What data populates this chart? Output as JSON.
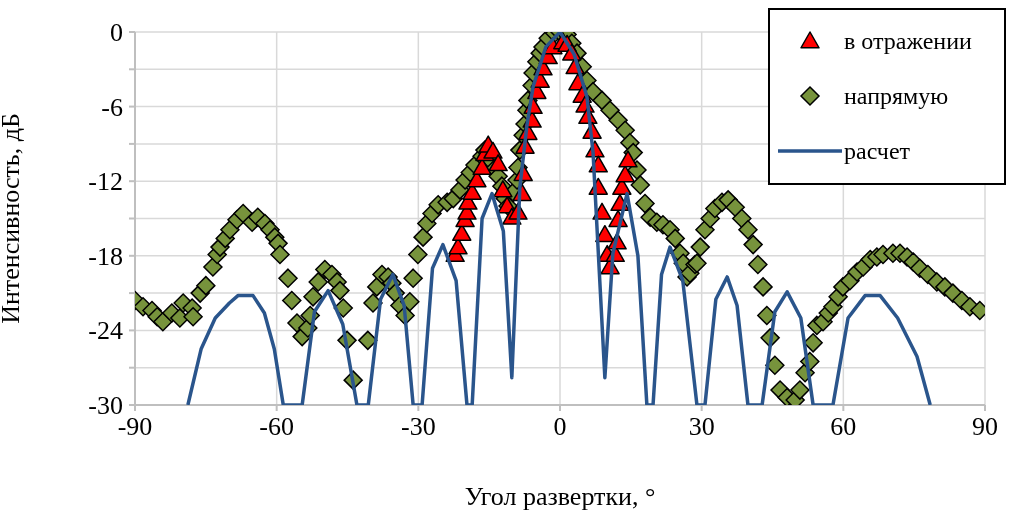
{
  "chart_data": {
    "type": "scatter",
    "xlabel": "Угол развертки, °",
    "ylabel": "Интенсивность, дБ",
    "xlim": [
      -90,
      90
    ],
    "xticks": [
      -90,
      -60,
      -30,
      0,
      30,
      60,
      90
    ],
    "ylim": [
      -30,
      0
    ],
    "yticks": [
      {
        "value": -30,
        "label": "-30"
      },
      {
        "value": -27,
        "label": null
      },
      {
        "value": -24,
        "label": "-24"
      },
      {
        "value": -21,
        "label": null
      },
      {
        "value": -18,
        "label": "-18"
      },
      {
        "value": -15,
        "label": null
      },
      {
        "value": -12,
        "label": "-12"
      },
      {
        "value": -9,
        "label": null
      },
      {
        "value": -6,
        "label": "-6"
      },
      {
        "value": -3,
        "label": null
      },
      {
        "value": 0,
        "label": "0"
      }
    ],
    "grid": true,
    "legend": "top right",
    "series": [
      {
        "name": "в отражении",
        "type": "scatter",
        "marker": "triangle",
        "color": "#ff0000",
        "x": [
          -22.2,
          -21.6,
          -20.8,
          -20.1,
          -19.7,
          -19.5,
          -18.6,
          -17.6,
          -16.5,
          -15.9,
          -15.2,
          -14.2,
          -13.1,
          -12.1,
          -11.2,
          -10.2,
          -8.9,
          -8.0,
          -7.8,
          -7.4,
          -6.8,
          -5.9,
          -5.7,
          -4.9,
          -4.2,
          -3.6,
          -2.5,
          -1.5,
          0.6,
          1.5,
          2.5,
          3.2,
          3.8,
          4.7,
          5.3,
          5.9,
          6.8,
          7.4,
          8.1,
          8.1,
          8.9,
          9.5,
          10.0,
          10.6,
          11.7,
          12.1,
          12.3,
          12.7,
          13.1,
          13.8,
          14.4
        ],
        "values": [
          -17.9,
          -17.3,
          -16.2,
          -15.1,
          -14.5,
          -13.7,
          -12.9,
          -11.9,
          -10.9,
          -9.8,
          -9.1,
          -9.6,
          -10.6,
          -12.7,
          -14.0,
          -14.9,
          -14.5,
          -13.0,
          -11.4,
          -9.2,
          -8.1,
          -7.1,
          -6.0,
          -4.8,
          -3.9,
          -2.9,
          -2.0,
          -1.2,
          -0.8,
          -1.0,
          -1.7,
          -2.8,
          -4.1,
          -5.1,
          -5.9,
          -6.8,
          -8.0,
          -9.5,
          -10.7,
          -12.5,
          -14.5,
          -16.3,
          -17.9,
          -18.9,
          -17.9,
          -16.9,
          -15.1,
          -13.8,
          -12.5,
          -11.5,
          -10.3
        ]
      },
      {
        "name": "напрямую",
        "type": "scatter",
        "marker": "diamond",
        "color": "#77933c",
        "x": [
          -90,
          -88.3,
          -86.4,
          -85.3,
          -84.1,
          -82.2,
          -80.5,
          -79.8,
          -77.9,
          -77.7,
          -76.2,
          -75,
          -73.5,
          -72.6,
          -72,
          -70.9,
          -69.9,
          -68.4,
          -67.1,
          -65.2,
          -64,
          -62.5,
          -61.4,
          -60.4,
          -59.7,
          -59.3,
          -57.6,
          -56.8,
          -55.7,
          -54.6,
          -53.4,
          -52.9,
          -52.3,
          -51.2,
          -49.8,
          -48.3,
          -47.2,
          -46.6,
          -45.9,
          -45.1,
          -43.8,
          -40.7,
          -39.6,
          -38.8,
          -37.7,
          -36.4,
          -35.6,
          -34.9,
          -33.9,
          -32.8,
          -31.8,
          -31.1,
          -30.1,
          -29,
          -28.2,
          -27.1,
          -25.8,
          -23.9,
          -22.6,
          -21.2,
          -20.1,
          -19,
          -18,
          -16.5,
          -15.9,
          -14.8,
          -13.8,
          -13.1,
          -12.3,
          -11.6,
          -11,
          -9.9,
          -9.1,
          -8.9,
          -8.5,
          -7.8,
          -7.4,
          -7,
          -6.8,
          -5.9,
          -5.7,
          -4.9,
          -4.2,
          -3.6,
          -2.5,
          -1.1,
          0,
          1.5,
          2.5,
          3.6,
          4.7,
          5.7,
          7,
          8.9,
          10.6,
          12.3,
          13.8,
          14.8,
          15.5,
          16.3,
          17,
          18,
          19.1,
          20.5,
          21.8,
          23.3,
          24.4,
          25.4,
          26.1,
          26.9,
          27.5,
          28.6,
          29,
          29.7,
          30.7,
          31.8,
          32.8,
          34.3,
          35.6,
          37.1,
          38.5,
          39.8,
          40.9,
          41.9,
          43,
          43.8,
          44.5,
          45.5,
          46.6,
          48.1,
          49.8,
          50.8,
          51.9,
          52.9,
          53.6,
          54.4,
          55.7,
          56.8,
          57.8,
          58.9,
          59.9,
          61.4,
          62.9,
          64.2,
          65.7,
          67.1,
          68.4,
          70.5,
          72,
          73.5,
          74.8,
          76.2,
          77.9,
          79.8,
          81.5,
          83.2,
          85.1,
          86.8,
          88.9
        ],
        "values": [
          -21.6,
          -22.1,
          -22.4,
          -22.9,
          -23.3,
          -22.6,
          -23,
          -21.8,
          -22.2,
          -22.9,
          -21,
          -20.4,
          -18.9,
          -17.9,
          -17.3,
          -16.6,
          -15.9,
          -15.1,
          -14.6,
          -15.3,
          -14.9,
          -15.4,
          -15.9,
          -16.5,
          -17,
          -17.9,
          -19.8,
          -21.6,
          -23.4,
          -24.5,
          -23.8,
          -22.8,
          -21.3,
          -20.1,
          -19.1,
          -19.5,
          -20.1,
          -20.8,
          -22.2,
          -24.8,
          -28,
          -24.8,
          -21.8,
          -20.5,
          -19.5,
          -19.7,
          -20.2,
          -21,
          -22,
          -22.8,
          -21.7,
          -19.8,
          -17.9,
          -16.5,
          -15.4,
          -14.6,
          -13.9,
          -13.7,
          -13.4,
          -12.7,
          -11.9,
          -11.3,
          -10.7,
          -10,
          -9.5,
          -10.3,
          -11,
          -11.6,
          -12.4,
          -13.4,
          -14,
          -12.9,
          -11.9,
          -10.9,
          -9.5,
          -8.3,
          -7.4,
          -6.3,
          -5.5,
          -4.3,
          -3.3,
          -2.4,
          -1.7,
          -1.2,
          -0.5,
          -0.1,
          0,
          -0.2,
          -0.9,
          -1.7,
          -2.8,
          -3.9,
          -4.8,
          -5.5,
          -6.3,
          -7.1,
          -7.9,
          -8.9,
          -9.7,
          -11.1,
          -12.3,
          -13.8,
          -14.9,
          -15.3,
          -15.5,
          -15.9,
          -16.6,
          -17.8,
          -18.6,
          -19.7,
          -19.4,
          -18.7,
          -18.6,
          -17.3,
          -15.9,
          -15,
          -14.2,
          -13.7,
          -13.5,
          -14.1,
          -15,
          -15.9,
          -17.1,
          -18.7,
          -20.5,
          -22.8,
          -24.6,
          -26.8,
          -28.8,
          -29.4,
          -29.6,
          -28.8,
          -27.4,
          -26.5,
          -25,
          -23.6,
          -23.3,
          -22.6,
          -22.1,
          -21.3,
          -20.5,
          -20,
          -19.3,
          -18.9,
          -18.3,
          -18.1,
          -17.9,
          -17.8,
          -17.8,
          -18.1,
          -18.5,
          -19,
          -19.5,
          -20.1,
          -20.5,
          -21,
          -21.6,
          -22.1,
          -22.4
        ]
      },
      {
        "name": "расчет",
        "type": "line",
        "marker": "none",
        "line_style": "solid",
        "color": "#2a558c",
        "x": [
          -78.8,
          -76,
          -73,
          -70,
          -68.2,
          -65,
          -62.6,
          -60.5,
          -58.6,
          -54.6,
          -52,
          -49.1,
          -46,
          -43,
          -40.6,
          -38,
          -35.4,
          -33,
          -31.1,
          -29.2,
          -27,
          -24.8,
          -22,
          -19.7,
          -18.6,
          -16.5,
          -14.4,
          -12,
          -10.2,
          -8.5,
          -7,
          -5.7,
          -3,
          0,
          3,
          5.7,
          7,
          9.5,
          11.2,
          14.2,
          16.5,
          18.4,
          19.7,
          21.5,
          23.3,
          26,
          29,
          30.7,
          33,
          35.4,
          37.5,
          39.8,
          42.8,
          45.5,
          48.1,
          51,
          53.6,
          57.8,
          61,
          64.6,
          67.8,
          71.5,
          75.6,
          78.4
        ],
        "values": [
          -30,
          -25.5,
          -23,
          -21.8,
          -21.2,
          -21.2,
          -22.6,
          -25.5,
          -30,
          -30,
          -22.5,
          -20.8,
          -23.5,
          -30,
          -30,
          -21.5,
          -19.5,
          -22,
          -30,
          -30,
          -19,
          -17.1,
          -20,
          -30,
          -30,
          -15,
          -13,
          -16,
          -27.8,
          -12.5,
          -7.5,
          -4.4,
          -1.2,
          0,
          -1.8,
          -5.2,
          -9.7,
          -27.8,
          -17.8,
          -13,
          -18,
          -30,
          -30,
          -19.5,
          -17.3,
          -20,
          -30,
          -30,
          -21.5,
          -19.7,
          -22,
          -30,
          -30,
          -22.5,
          -20.9,
          -23,
          -30,
          -30,
          -23,
          -21.2,
          -21.2,
          -23,
          -26.1,
          -30
        ]
      }
    ]
  }
}
